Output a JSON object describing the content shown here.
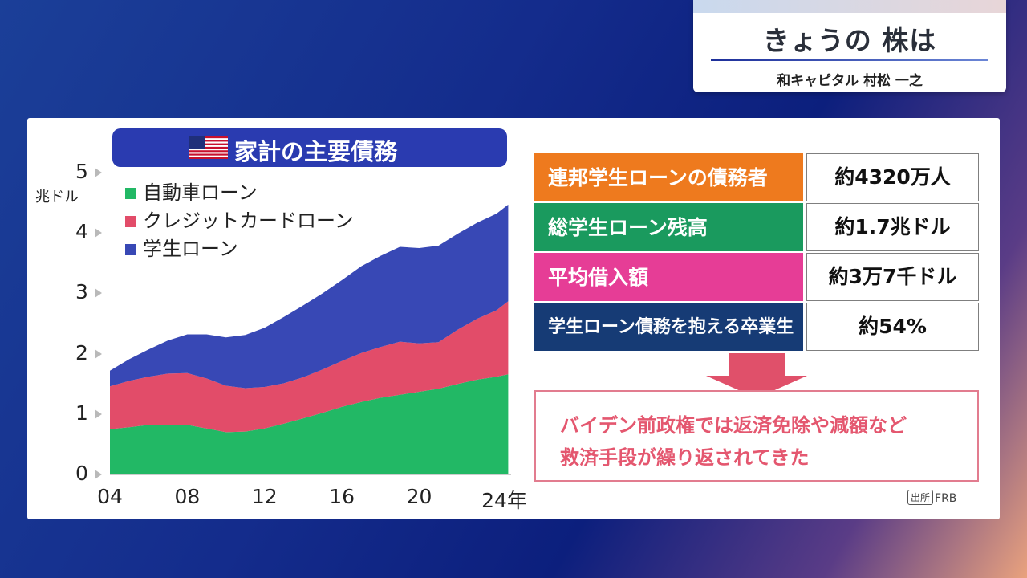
{
  "caption": {
    "title": "きょうの 株は",
    "subtitle": "和キャピタル 村松 一之"
  },
  "chart_data": {
    "type": "area",
    "title": "家計の主要債務",
    "ylabel": "兆ドル",
    "ylim": [
      0,
      5
    ],
    "yticks": [
      "0",
      "1",
      "2",
      "3",
      "4",
      "5"
    ],
    "xlim": [
      2004,
      2024.75
    ],
    "xticks": [
      {
        "label": "04",
        "value": 2004
      },
      {
        "label": "08",
        "value": 2008
      },
      {
        "label": "12",
        "value": 2012
      },
      {
        "label": "16",
        "value": 2016
      },
      {
        "label": "20",
        "value": 2020
      },
      {
        "label": "24年",
        "value": 2024.4
      }
    ],
    "stacked": true,
    "x": [
      2004,
      2005,
      2006,
      2007,
      2008,
      2009,
      2010,
      2011,
      2012,
      2013,
      2014,
      2015,
      2016,
      2017,
      2018,
      2019,
      2020,
      2021,
      2022,
      2023,
      2024,
      2024.6
    ],
    "series": [
      {
        "name": "自動車ローン",
        "color": "#22b865",
        "values": [
          0.75,
          0.78,
          0.82,
          0.82,
          0.82,
          0.76,
          0.7,
          0.71,
          0.76,
          0.84,
          0.93,
          1.02,
          1.12,
          1.2,
          1.27,
          1.32,
          1.37,
          1.42,
          1.5,
          1.57,
          1.62,
          1.66
        ]
      },
      {
        "name": "クレジットカードローン",
        "color": "#e24c69",
        "values": [
          0.71,
          0.77,
          0.8,
          0.85,
          0.86,
          0.83,
          0.77,
          0.72,
          0.69,
          0.67,
          0.68,
          0.72,
          0.76,
          0.81,
          0.84,
          0.88,
          0.8,
          0.77,
          0.9,
          1.01,
          1.1,
          1.21
        ]
      },
      {
        "name": "学生ローン",
        "color": "#3848b5",
        "values": [
          0.26,
          0.36,
          0.45,
          0.55,
          0.64,
          0.73,
          0.8,
          0.88,
          0.98,
          1.1,
          1.19,
          1.26,
          1.34,
          1.44,
          1.51,
          1.57,
          1.58,
          1.6,
          1.59,
          1.59,
          1.6,
          1.6
        ]
      }
    ]
  },
  "table": [
    {
      "label": "連邦学生ローンの債務者",
      "value": "約4320万人",
      "color": "#ee7a1e"
    },
    {
      "label": "総学生ローン残高",
      "value": "約1.7兆ドル",
      "color": "#1a9a5e"
    },
    {
      "label": "平均借入額",
      "value": "約3万7千ドル",
      "color": "#e63d96"
    },
    {
      "label": "学生ローン債務を抱える卒業生",
      "value": "約54%",
      "color": "#163b75"
    }
  ],
  "note": {
    "line1": "バイデン前政権では返済免除や減額など",
    "line2": "救済手段が繰り返されてきた"
  },
  "source": {
    "badge": "出所",
    "text": "FRB"
  }
}
